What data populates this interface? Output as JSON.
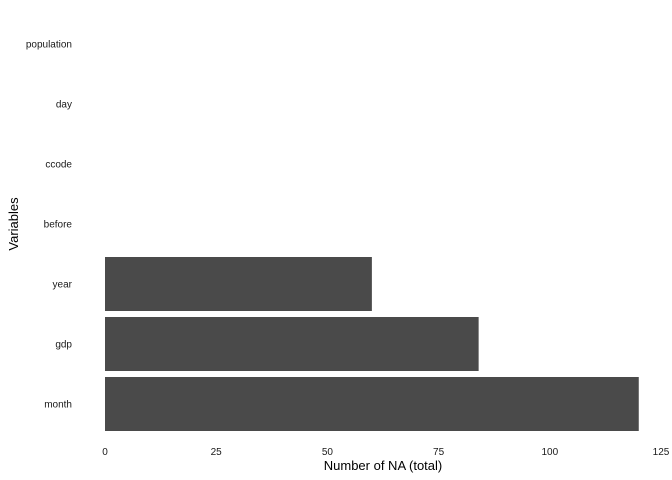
{
  "chart_data": {
    "type": "bar",
    "orientation": "horizontal",
    "categories": [
      "month",
      "gdp",
      "year",
      "before",
      "ccode",
      "day",
      "population"
    ],
    "values": [
      120,
      84,
      60,
      0,
      0,
      0,
      0
    ],
    "xlabel": "Number of NA (total)",
    "ylabel": "Variables",
    "xlim": [
      0,
      125
    ],
    "xticks": [
      "0",
      "25",
      "50",
      "75",
      "100",
      "125"
    ],
    "grid": false,
    "bar_color": "#4a4a4a"
  }
}
